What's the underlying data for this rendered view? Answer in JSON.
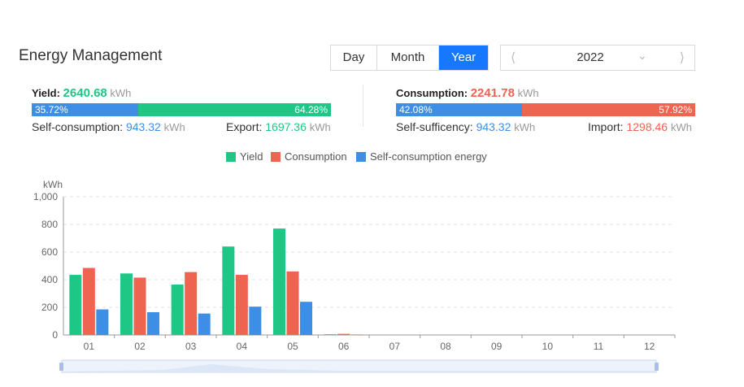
{
  "header": {
    "title": "Energy Management"
  },
  "period_tabs": [
    {
      "label": "Day",
      "active": false
    },
    {
      "label": "Month",
      "active": false
    },
    {
      "label": "Year",
      "active": true
    }
  ],
  "year_picker": {
    "value": "2022",
    "prev_icon": "chevron-left-icon",
    "next_icon": "chevron-right-icon",
    "dropdown_icon": "chevron-down-icon"
  },
  "yield": {
    "label": "Yield:",
    "value": "2640.68",
    "unit": "kWh",
    "self_pct": "35.72%",
    "export_pct": "64.28%",
    "self_fraction": 0.3572,
    "self_label": "Self-consumption:",
    "self_value": "943.32",
    "self_unit": "kWh",
    "export_label": "Export:",
    "export_value": "1697.36",
    "export_unit": "kWh"
  },
  "consumption": {
    "label": "Consumption:",
    "value": "2241.78",
    "unit": "kWh",
    "self_pct": "42.08%",
    "import_pct": "57.92%",
    "self_fraction": 0.4208,
    "self_label": "Self-sufficency:",
    "self_value": "943.32",
    "self_unit": "kWh",
    "import_label": "Import:",
    "import_value": "1298.46",
    "import_unit": "kWh"
  },
  "colors": {
    "yield": "#1ec785",
    "consumption": "#ef6351",
    "self": "#3d8fe6",
    "accent": "#1677ff"
  },
  "chart_data": {
    "type": "bar",
    "ylabel": "kWh",
    "ylim": [
      0,
      1000
    ],
    "yticks": [
      "0",
      "200",
      "400",
      "600",
      "800",
      "1,000"
    ],
    "ytick_values": [
      0,
      200,
      400,
      600,
      800,
      1000
    ],
    "categories": [
      "01",
      "02",
      "03",
      "04",
      "05",
      "06",
      "07",
      "08",
      "09",
      "10",
      "11",
      "12"
    ],
    "series": [
      {
        "name": "Yield",
        "values": [
          435,
          445,
          365,
          640,
          770,
          5,
          0,
          0,
          0,
          0,
          0,
          0
        ]
      },
      {
        "name": "Consumption",
        "values": [
          485,
          415,
          455,
          435,
          460,
          8,
          0,
          0,
          0,
          0,
          0,
          0
        ]
      },
      {
        "name": "Self-consumption energy",
        "values": [
          185,
          165,
          155,
          205,
          240,
          3,
          0,
          0,
          0,
          0,
          0,
          0
        ]
      }
    ],
    "grid": true,
    "legend": "top-center"
  }
}
